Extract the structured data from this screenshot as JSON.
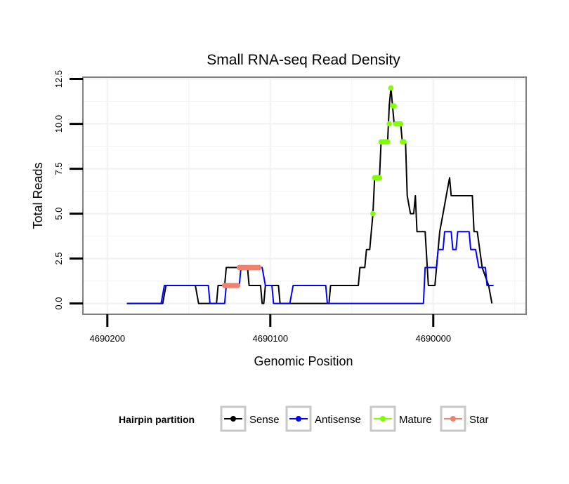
{
  "chart_data": {
    "type": "line",
    "title": "Small RNA-seq Read Density",
    "xlabel": "Genomic Position",
    "ylabel": "Total Reads",
    "x_reversed": true,
    "xlim": [
      4690215,
      4689943
    ],
    "ylim": [
      -0.6,
      12.6
    ],
    "x_ticks": [
      4690200,
      4690100,
      4690000
    ],
    "x_tick_labels": [
      "4690200",
      "4690100",
      "4690000"
    ],
    "y_ticks": [
      0,
      2.5,
      5,
      7.5,
      10,
      12.5
    ],
    "y_tick_labels": [
      "0.0",
      "2.5",
      "5.0",
      "7.5",
      "10.0",
      "12.5"
    ],
    "legend": {
      "title": "Hairpin partition",
      "position": "bottom",
      "entries": [
        "Sense",
        "Antisense",
        "Mature",
        "Star"
      ]
    },
    "colors": {
      "Sense": "#000000",
      "Antisense": "#0000ff",
      "Mature": "#7fff00",
      "Star": "#f08070",
      "grid": "#f2f2f2",
      "panel_border": "#808080"
    },
    "series": [
      {
        "name": "Sense",
        "points": [
          [
            4690188,
            0
          ],
          [
            4690166,
            0
          ],
          [
            4690164,
            1
          ],
          [
            4690146,
            1
          ],
          [
            4690144,
            0
          ],
          [
            4690133,
            0
          ],
          [
            4690132,
            1
          ],
          [
            4690128,
            1
          ],
          [
            4690127,
            2
          ],
          [
            4690114,
            2
          ],
          [
            4690113,
            1
          ],
          [
            4690106,
            1
          ],
          [
            4690105,
            0
          ],
          [
            4690104,
            0
          ],
          [
            4690103,
            1
          ],
          [
            4690095,
            1
          ],
          [
            4690094,
            0
          ],
          [
            4690064,
            0
          ],
          [
            4690063,
            1
          ],
          [
            4690046,
            1
          ],
          [
            4690045,
            2
          ],
          [
            4690042,
            2
          ],
          [
            4690041,
            3
          ],
          [
            4690039,
            3
          ],
          [
            4690037,
            5
          ],
          [
            4690036,
            7
          ],
          [
            4690033,
            7
          ],
          [
            4690032,
            9
          ],
          [
            4690028,
            9
          ],
          [
            4690027,
            11
          ],
          [
            4690026,
            12
          ],
          [
            4690025,
            11
          ],
          [
            4690024,
            10
          ],
          [
            4690020,
            10
          ],
          [
            4690019,
            9
          ],
          [
            4690017,
            9
          ],
          [
            4690016,
            6
          ],
          [
            4690014,
            5
          ],
          [
            4690012,
            5
          ],
          [
            4690011,
            6
          ],
          [
            4690010,
            4
          ],
          [
            4690005,
            4
          ],
          [
            4690003,
            1
          ],
          [
            4689999,
            1
          ],
          [
            4689996,
            4
          ],
          [
            4689994,
            5
          ],
          [
            4689992,
            6
          ],
          [
            4689990,
            7
          ],
          [
            4689989,
            6
          ],
          [
            4689976,
            6
          ],
          [
            4689975,
            4
          ],
          [
            4689973,
            4
          ],
          [
            4689970,
            2
          ],
          [
            4689966,
            1
          ],
          [
            4689964,
            0
          ]
        ]
      },
      {
        "name": "Antisense",
        "points": [
          [
            4690188,
            0
          ],
          [
            4690167,
            0
          ],
          [
            4690165,
            1
          ],
          [
            4690138,
            1
          ],
          [
            4690137,
            0
          ],
          [
            4690128,
            0
          ],
          [
            4690127,
            1
          ],
          [
            4690119,
            1
          ],
          [
            4690118,
            2
          ],
          [
            4690105,
            2
          ],
          [
            4690103,
            1
          ],
          [
            4690099,
            1
          ],
          [
            4690098,
            0
          ],
          [
            4690088,
            0
          ],
          [
            4690086,
            1
          ],
          [
            4690066,
            1
          ],
          [
            4690065,
            0
          ],
          [
            4690006,
            0
          ],
          [
            4690005,
            2
          ],
          [
            4689998,
            2
          ],
          [
            4689997,
            3
          ],
          [
            4689994,
            3
          ],
          [
            4689993,
            4
          ],
          [
            4689989,
            4
          ],
          [
            4689988,
            3
          ],
          [
            4689986,
            3
          ],
          [
            4689985,
            4
          ],
          [
            4689978,
            4
          ],
          [
            4689977,
            3
          ],
          [
            4689974,
            3
          ],
          [
            4689972,
            2
          ],
          [
            4689968,
            2
          ],
          [
            4689967,
            1
          ],
          [
            4689963,
            1
          ]
        ]
      },
      {
        "name": "Mature",
        "points": [
          [
            4690037,
            5
          ],
          [
            4690036,
            7
          ],
          [
            4690035,
            7
          ],
          [
            4690034,
            7
          ],
          [
            4690033,
            7
          ],
          [
            4690032,
            9
          ],
          [
            4690031,
            9
          ],
          [
            4690030,
            9
          ],
          [
            4690029,
            9
          ],
          [
            4690028,
            9
          ],
          [
            4690027,
            10
          ],
          [
            4690026,
            12
          ],
          [
            4690025,
            11
          ],
          [
            4690024,
            11
          ],
          [
            4690023,
            10
          ],
          [
            4690022,
            10
          ],
          [
            4690021,
            10
          ],
          [
            4690020,
            10
          ],
          [
            4690019,
            9
          ],
          [
            4690018,
            9
          ]
        ]
      },
      {
        "name": "Star",
        "points": [
          [
            4690128,
            1
          ],
          [
            4690127,
            1
          ],
          [
            4690126,
            1
          ],
          [
            4690125,
            1
          ],
          [
            4690124,
            1
          ],
          [
            4690123,
            1
          ],
          [
            4690122,
            1
          ],
          [
            4690121,
            1
          ],
          [
            4690120,
            1
          ],
          [
            4690119,
            2
          ],
          [
            4690118,
            2
          ],
          [
            4690117,
            2
          ],
          [
            4690116,
            2
          ],
          [
            4690115,
            2
          ],
          [
            4690114,
            2
          ],
          [
            4690113,
            2
          ],
          [
            4690112,
            2
          ],
          [
            4690111,
            2
          ],
          [
            4690110,
            2
          ],
          [
            4690109,
            2
          ],
          [
            4690108,
            2
          ],
          [
            4690107,
            2
          ]
        ]
      }
    ]
  }
}
